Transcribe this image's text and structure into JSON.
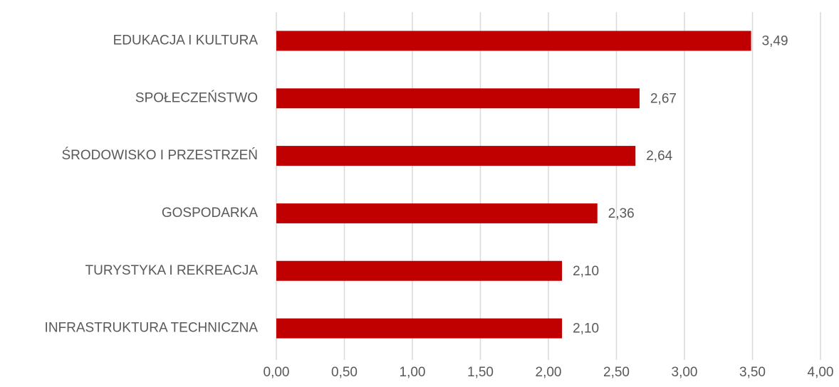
{
  "chart_data": {
    "type": "hbar",
    "categories": [
      "EDUKACJA I KULTURA",
      "SPOŁECZEŃSTWO",
      "ŚRODOWISKO I PRZESTRZEŃ",
      "GOSPODARKA",
      "TURYSTYKA I REKREACJA",
      "INFRASTRUKTURA TECHNICZNA"
    ],
    "values": [
      3.49,
      2.67,
      2.64,
      2.36,
      2.1,
      2.1
    ],
    "value_labels": [
      "3,49",
      "2,67",
      "2,64",
      "2,36",
      "2,10",
      "2,10"
    ],
    "color": "#c00000",
    "xlim": [
      0,
      4
    ],
    "xticks": [
      {
        "value": 0,
        "label": "0,00"
      },
      {
        "value": 0.5,
        "label": "0,50"
      },
      {
        "value": 1,
        "label": "1,00"
      },
      {
        "value": 1.5,
        "label": "1,50"
      },
      {
        "value": 2,
        "label": "2,00"
      },
      {
        "value": 2.5,
        "label": "2,50"
      },
      {
        "value": 3,
        "label": "3,00"
      },
      {
        "value": 3.5,
        "label": "3,50"
      },
      {
        "value": 4,
        "label": "4,00"
      }
    ],
    "grid": true
  }
}
